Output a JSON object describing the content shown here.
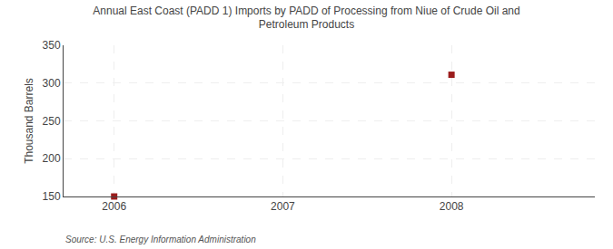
{
  "chart_data": {
    "type": "scatter",
    "title": "Annual East Coast (PADD 1) Imports by PADD of Processing from Niue of Crude Oil and\nPetroleum Products",
    "y_label": "Thousand Barrels",
    "annotations": [
      "Source: U.S. Energy Information Administration"
    ],
    "x": [
      2006,
      2008
    ],
    "values": [
      150,
      311
    ],
    "color": "#9b1c1c",
    "marker": "square",
    "xlim": [
      2005.7,
      2008.85
    ],
    "xticks": [
      2006,
      2007,
      2008
    ],
    "ylim": [
      150,
      350
    ],
    "yticks": [
      150,
      200,
      250,
      300,
      350
    ],
    "grid": true
  }
}
